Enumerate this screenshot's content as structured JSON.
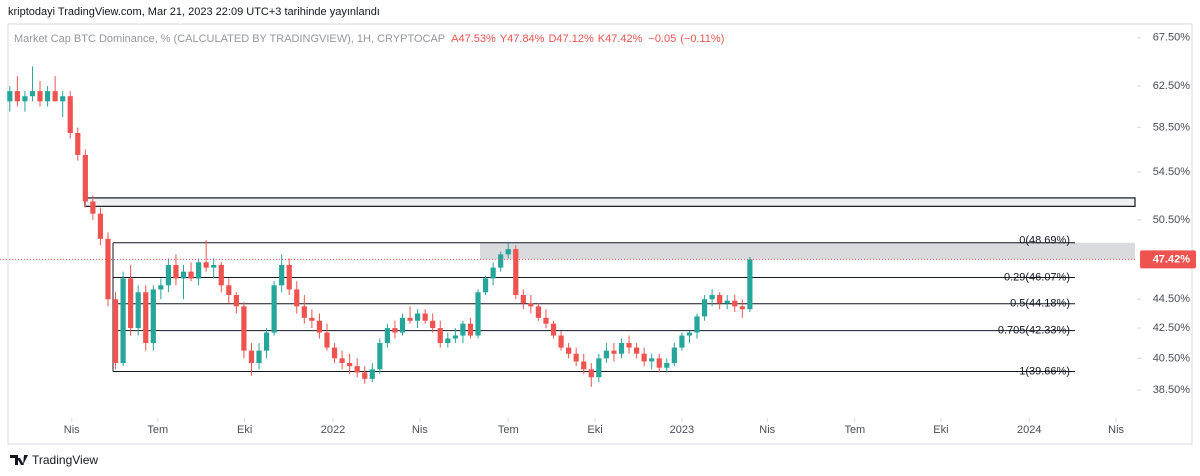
{
  "chart_data": {
    "type": "candlestick",
    "published": "kriptodayi TradingView.com, Mar 21, 2023 22:09 UTC+3 tarihinde yayınlandı",
    "title": "Market Cap BTC Dominance, %  (CALCULATED BY TRADINGVIEW), 1H, CRYPTOCAP",
    "ohlc_header": [
      {
        "value": 47.53,
        "label": "A47.53%"
      },
      {
        "value": 47.84,
        "label": "Y47.84%"
      },
      {
        "value": 47.12,
        "label": "D47.12%"
      },
      {
        "value": 47.42,
        "label": "K47.42%"
      }
    ],
    "change": {
      "value": -0.05,
      "label": "−0.05"
    },
    "change_pct": {
      "value": -0.11,
      "label": "(−0.11%)"
    },
    "brand": "TradingView",
    "up_color": "#26a69a",
    "down_color": "#ef5350",
    "log_scale": true,
    "ylim": [
      37.3,
      69.0
    ],
    "xlim": [
      -1.3,
      149
    ],
    "yticks": [
      {
        "value": 67.5,
        "label": "67.50%"
      },
      {
        "value": 62.5,
        "label": "62.50%"
      },
      {
        "value": 58.5,
        "label": "58.50%"
      },
      {
        "value": 54.5,
        "label": "54.50%"
      },
      {
        "value": 50.5,
        "label": "50.50%"
      },
      {
        "value": 44.5,
        "label": "44.50%"
      },
      {
        "value": 42.5,
        "label": "42.50%"
      },
      {
        "value": 40.5,
        "label": "40.50%"
      },
      {
        "value": 38.5,
        "label": "38.50%"
      }
    ],
    "xticks": [
      {
        "value": 8.2,
        "label": "Nis"
      },
      {
        "value": 19.6,
        "label": "Tem"
      },
      {
        "value": 31.1,
        "label": "Eki"
      },
      {
        "value": 42.8,
        "label": "2022"
      },
      {
        "value": 54.3,
        "label": "Nis"
      },
      {
        "value": 66.0,
        "label": "Tem"
      },
      {
        "value": 77.5,
        "label": "Eki"
      },
      {
        "value": 89.0,
        "label": "2023"
      },
      {
        "value": 100.3,
        "label": "Nis"
      },
      {
        "value": 111.9,
        "label": "Tem"
      },
      {
        "value": 123.3,
        "label": "Eki"
      },
      {
        "value": 135.0,
        "label": "2024"
      },
      {
        "value": 146.5,
        "label": "Nis"
      }
    ],
    "last_price": {
      "value": 47.42,
      "label": "47.42%"
    },
    "fib_levels": [
      {
        "value": 48.69,
        "label": "0(48.69%)"
      },
      {
        "value": 46.07,
        "label": "0.29(46.07%)"
      },
      {
        "value": 44.18,
        "label": "0.5(44.18%)"
      },
      {
        "value": 42.33,
        "label": "0.705(42.33%)"
      },
      {
        "value": 39.66,
        "label": "1(39.66%)"
      }
    ],
    "zones": [
      [
        51.6,
        52.3
      ],
      [
        47.42,
        48.69
      ]
    ],
    "candles": [
      [
        61,
        62.5,
        60,
        62
      ],
      [
        62,
        63.5,
        60.5,
        61
      ],
      [
        61,
        62,
        60,
        61.5
      ],
      [
        61.5,
        64.5,
        61,
        62
      ],
      [
        62,
        63,
        60.5,
        61
      ],
      [
        61,
        62.5,
        60.5,
        62
      ],
      [
        62,
        63.5,
        61,
        61
      ],
      [
        61,
        62,
        59.5,
        61.5
      ],
      [
        61.5,
        62,
        57.5,
        58
      ],
      [
        58,
        58.5,
        55.5,
        56
      ],
      [
        56,
        56.5,
        51.5,
        52
      ],
      [
        52,
        52.5,
        50.5,
        51
      ],
      [
        51,
        51.5,
        48.5,
        49
      ],
      [
        49,
        49.5,
        44,
        44.5
      ],
      [
        44.5,
        45,
        39.8,
        40.2
      ],
      [
        40.2,
        46.5,
        40,
        46
      ],
      [
        46,
        47,
        42,
        42.5
      ],
      [
        42.5,
        45.5,
        42,
        45
      ],
      [
        45,
        45.5,
        41,
        41.5
      ],
      [
        41.5,
        45.5,
        41,
        45.2
      ],
      [
        45.2,
        46,
        44.5,
        45.5
      ],
      [
        45.5,
        47.5,
        45,
        47
      ],
      [
        47,
        47.8,
        45.5,
        46
      ],
      [
        46,
        47,
        44.5,
        46.5
      ],
      [
        46.5,
        47.2,
        45.8,
        46
      ],
      [
        46,
        47.5,
        45.5,
        47.2
      ],
      [
        47.2,
        48.9,
        46.5,
        46.8
      ],
      [
        46.8,
        47.5,
        46,
        47
      ],
      [
        47,
        47.2,
        45,
        45.5
      ],
      [
        45.5,
        46,
        44.2,
        44.8
      ],
      [
        44.8,
        45,
        43.5,
        44
      ],
      [
        44,
        44.3,
        40.5,
        41
      ],
      [
        41,
        41.5,
        39.4,
        40.2
      ],
      [
        40.2,
        41.5,
        39.8,
        41
      ],
      [
        41,
        42.5,
        40.5,
        42.2
      ],
      [
        42.2,
        45.8,
        42,
        45.5
      ],
      [
        45.5,
        47.8,
        45,
        47
      ],
      [
        47,
        47.5,
        44.8,
        45.2
      ],
      [
        45.2,
        45.8,
        43.5,
        44
      ],
      [
        44,
        44.8,
        42.8,
        43.2
      ],
      [
        43.2,
        43.8,
        42.5,
        43
      ],
      [
        43,
        43.5,
        41.8,
        42.2
      ],
      [
        42.2,
        42.8,
        41,
        41.2
      ],
      [
        41.2,
        41.5,
        40.2,
        40.5
      ],
      [
        40.5,
        41,
        39.8,
        40.2
      ],
      [
        40.2,
        40.8,
        39.5,
        40
      ],
      [
        40,
        40.5,
        39.3,
        39.6
      ],
      [
        39.6,
        40,
        38.9,
        39.2
      ],
      [
        39.2,
        40.2,
        39,
        39.8
      ],
      [
        39.8,
        41.8,
        39.5,
        41.5
      ],
      [
        41.5,
        42.8,
        41.2,
        42.5
      ],
      [
        42.5,
        43,
        41.8,
        42.2
      ],
      [
        42.2,
        43.5,
        42,
        43.2
      ],
      [
        43.2,
        44,
        42.8,
        43
      ],
      [
        43,
        43.8,
        42.5,
        43.5
      ],
      [
        43.5,
        43.8,
        42.8,
        43
      ],
      [
        43,
        43.5,
        42.2,
        42.5
      ],
      [
        42.5,
        43,
        41.2,
        41.5
      ],
      [
        41.5,
        42.2,
        41.2,
        41.8
      ],
      [
        41.8,
        42.5,
        41.5,
        42
      ],
      [
        42,
        43,
        41.5,
        42.8
      ],
      [
        42.8,
        43.2,
        41.8,
        42
      ],
      [
        42,
        45.2,
        41.8,
        45
      ],
      [
        45,
        46.2,
        44.8,
        46
      ],
      [
        46,
        47.2,
        45.5,
        46.8
      ],
      [
        46.8,
        48,
        46.5,
        47.8
      ],
      [
        47.8,
        48.69,
        47.5,
        48.2
      ],
      [
        48.2,
        48.5,
        44.5,
        44.8
      ],
      [
        44.8,
        45.2,
        43.8,
        44.2
      ],
      [
        44.2,
        44.8,
        43.5,
        44
      ],
      [
        44,
        44.2,
        43,
        43.2
      ],
      [
        43.2,
        43.8,
        42.5,
        42.8
      ],
      [
        42.8,
        43,
        41.8,
        42
      ],
      [
        42,
        42.3,
        41,
        41.2
      ],
      [
        41.2,
        41.5,
        40.5,
        40.8
      ],
      [
        40.8,
        41.2,
        40,
        40.3
      ],
      [
        40.3,
        40.8,
        39.5,
        39.8
      ],
      [
        39.8,
        40.2,
        38.7,
        39.3
      ],
      [
        39.3,
        40.8,
        39,
        40.5
      ],
      [
        40.5,
        41.5,
        40.2,
        41
      ],
      [
        41,
        41.5,
        40.3,
        40.8
      ],
      [
        40.8,
        41.8,
        40.5,
        41.5
      ],
      [
        41.5,
        42,
        40.8,
        41.2
      ],
      [
        41.2,
        41.5,
        40.5,
        40.8
      ],
      [
        40.8,
        41.2,
        40,
        40.3
      ],
      [
        40.3,
        40.8,
        39.8,
        40.5
      ],
      [
        40.5,
        40.8,
        39.6,
        39.9
      ],
      [
        39.9,
        40.5,
        39.6,
        40.2
      ],
      [
        40.2,
        41.5,
        40,
        41.2
      ],
      [
        41.2,
        42.2,
        41,
        42
      ],
      [
        42,
        42.3,
        41.5,
        42.2
      ],
      [
        42.2,
        43.5,
        41.8,
        43.3
      ],
      [
        43.3,
        44.8,
        43,
        44.5
      ],
      [
        44.5,
        45.2,
        44,
        44.8
      ],
      [
        44.8,
        45,
        43.8,
        44.2
      ],
      [
        44.2,
        44.8,
        43.8,
        44.4
      ],
      [
        44.4,
        44.8,
        43.6,
        44
      ],
      [
        44,
        44.5,
        43.2,
        43.8
      ],
      [
        43.8,
        47.6,
        43.6,
        47.42
      ]
    ]
  }
}
